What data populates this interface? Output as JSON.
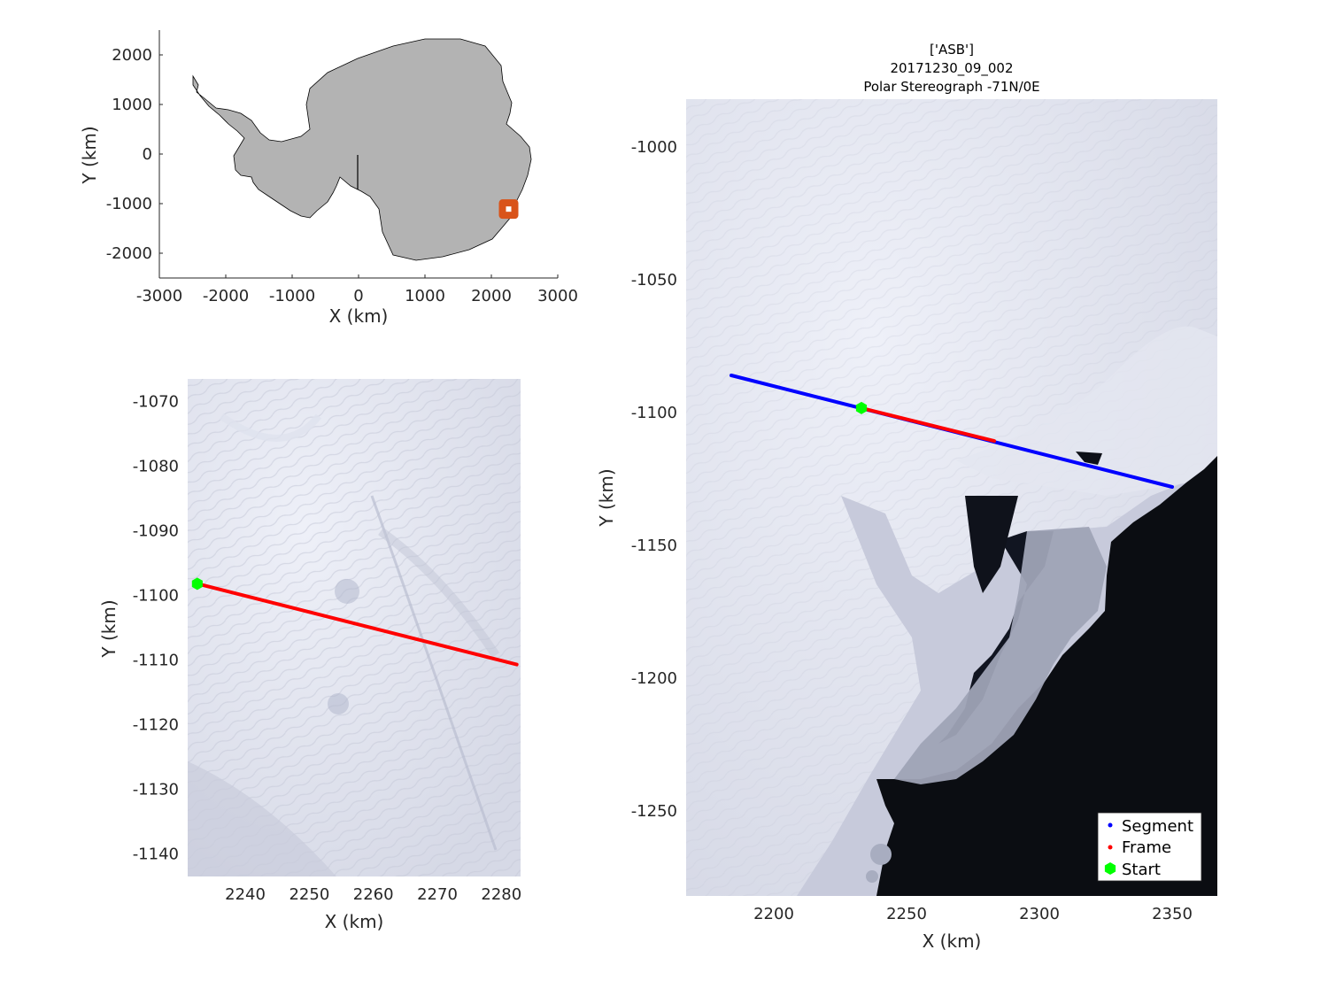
{
  "overview": {
    "xlabel": "X (km)",
    "ylabel": "Y (km)",
    "xlim": [
      -3000,
      3000
    ],
    "ylim": [
      -2500,
      2500
    ],
    "xticks": [
      "-3000",
      "-2000",
      "-1000",
      "0",
      "1000",
      "2000",
      "3000"
    ],
    "yticks": [
      "2000",
      "1000",
      "0",
      "-1000",
      "-2000"
    ],
    "land_color": "#b3b3b3",
    "marker_color": "#d95319",
    "marker_position_km": [
      2260,
      -1110
    ]
  },
  "detail": {
    "xlabel": "X (km)",
    "ylabel": "Y (km)",
    "xlim": [
      2231,
      2283
    ],
    "ylim": [
      -1143.5,
      -1066.5
    ],
    "xticks": [
      "2240",
      "2250",
      "2260",
      "2270",
      "2280"
    ],
    "yticks": [
      "-1070",
      "-1080",
      "-1090",
      "-1100",
      "-1110",
      "-1120",
      "-1130",
      "-1140"
    ],
    "frame_line": {
      "color": "#ff0000",
      "start": [
        2232.5,
        -1098.2
      ],
      "end": [
        2282.4,
        -1110.7
      ]
    },
    "start_point": {
      "color": "#00ff00",
      "x": 2232.5,
      "y": -1098.2
    }
  },
  "main": {
    "title_lines": [
      "['ASB']",
      "20171230_09_002",
      "Polar Stereograph -71N/0E"
    ],
    "xlabel": "X (km)",
    "ylabel": "Y (km)",
    "xlim": [
      2167,
      2367
    ],
    "ylim": [
      -1282,
      -982
    ],
    "xticks": [
      "2200",
      "2250",
      "2300",
      "2350"
    ],
    "yticks": [
      "-1000",
      "-1050",
      "-1100",
      "-1150",
      "-1200",
      "-1250"
    ],
    "segment_line": {
      "color": "#0000ff",
      "start": [
        2184,
        -1086
      ],
      "end": [
        2350,
        -1128
      ]
    },
    "frame_line": {
      "color": "#ff0000",
      "start": [
        2233,
        -1098.3
      ],
      "end": [
        2283,
        -1110.7
      ]
    },
    "start_point": {
      "color": "#00ff00",
      "x": 2233,
      "y": -1098.3
    },
    "legend": {
      "placement": "bottom-right",
      "items": [
        {
          "label": "Segment",
          "color": "#0000ff",
          "marker": "dot"
        },
        {
          "label": "Frame",
          "color": "#ff0000",
          "marker": "dot"
        },
        {
          "label": "Start",
          "color": "#00ff00",
          "marker": "hexagon"
        }
      ]
    }
  },
  "chart_data": [
    {
      "type": "line",
      "xlabel": "X (km)",
      "ylabel": "Y (km)",
      "xlim": [
        2231,
        2283
      ],
      "ylim": [
        -1143.5,
        -1066.5
      ],
      "series": [
        {
          "name": "Frame",
          "x": [
            2232.5,
            2282.4
          ],
          "y": [
            -1098.2,
            -1110.7
          ]
        },
        {
          "name": "Start",
          "x": [
            2232.5
          ],
          "y": [
            -1098.2
          ]
        }
      ]
    },
    {
      "type": "line",
      "title": "['ASB'] 20171230_09_002 Polar Stereograph -71N/0E",
      "xlabel": "X (km)",
      "ylabel": "Y (km)",
      "xlim": [
        2167,
        2367
      ],
      "ylim": [
        -1282,
        -982
      ],
      "series": [
        {
          "name": "Segment",
          "x": [
            2184,
            2350
          ],
          "y": [
            -1086,
            -1128
          ]
        },
        {
          "name": "Frame",
          "x": [
            2233,
            2283
          ],
          "y": [
            -1098.3,
            -1110.7
          ]
        },
        {
          "name": "Start",
          "x": [
            2233
          ],
          "y": [
            -1098.3
          ]
        }
      ]
    }
  ]
}
